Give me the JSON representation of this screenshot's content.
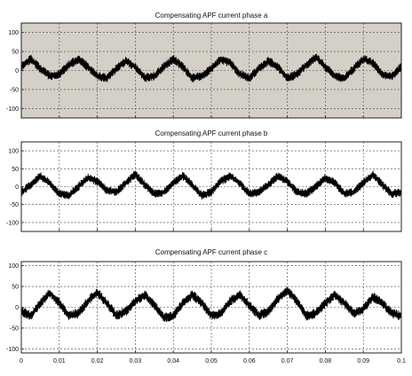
{
  "chart_data": [
    {
      "type": "line",
      "title": "Compensating APF current phase a",
      "xlabel": "",
      "ylabel": "",
      "xlim": [
        0,
        0.1
      ],
      "ylim": [
        -125,
        125
      ],
      "y_ticks": [
        100,
        50,
        0,
        -50,
        -100
      ],
      "y_tick_labels": [
        "100",
        "50",
        "0",
        "-50",
        "-100"
      ],
      "x_ticks": [
        0,
        0.01,
        0.02,
        0.03,
        0.04,
        0.05,
        0.06,
        0.07,
        0.08,
        0.09,
        0.1
      ],
      "x_tick_labels": [],
      "grid": true,
      "background": "#d4d0c8",
      "line_color": "#000000",
      "series": [
        {
          "x": [
            0,
            0.0025,
            0.005,
            0.0075,
            0.01,
            0.0125,
            0.015,
            0.0175,
            0.02,
            0.0225,
            0.025,
            0.0275,
            0.03,
            0.0325,
            0.035,
            0.0375,
            0.04,
            0.0425,
            0.045,
            0.0475,
            0.05,
            0.0525,
            0.055,
            0.0575,
            0.06,
            0.0625,
            0.065,
            0.0675,
            0.07,
            0.0725,
            0.075,
            0.0775,
            0.08,
            0.0825,
            0.085,
            0.0875,
            0.09,
            0.0925,
            0.095,
            0.0975,
            0.1
          ],
          "values": [
            10,
            30,
            5,
            -15,
            -10,
            15,
            30,
            10,
            -15,
            -20,
            5,
            25,
            10,
            -20,
            -15,
            10,
            30,
            10,
            -20,
            -15,
            5,
            30,
            20,
            -10,
            -20,
            5,
            25,
            10,
            -20,
            -10,
            15,
            35,
            10,
            -15,
            -20,
            5,
            30,
            20,
            -10,
            -15,
            10
          ]
        }
      ],
      "noise_amplitude": 12
    },
    {
      "type": "line",
      "title": "Compensating APF current phase b",
      "xlabel": "",
      "ylabel": "",
      "xlim": [
        0,
        0.1
      ],
      "ylim": [
        -125,
        125
      ],
      "y_ticks": [
        100,
        50,
        0,
        -50,
        -100
      ],
      "y_tick_labels": [
        "100",
        "50",
        "0",
        "-50",
        "-100"
      ],
      "x_ticks": [
        0,
        0.01,
        0.02,
        0.03,
        0.04,
        0.05,
        0.06,
        0.07,
        0.08,
        0.09,
        0.1
      ],
      "x_tick_labels": [],
      "grid": true,
      "background": "#ffffff",
      "line_color": "#000000",
      "series": [
        {
          "x": [
            0,
            0.0025,
            0.005,
            0.0075,
            0.01,
            0.0125,
            0.015,
            0.0175,
            0.02,
            0.0225,
            0.025,
            0.0275,
            0.03,
            0.0325,
            0.035,
            0.0375,
            0.04,
            0.0425,
            0.045,
            0.0475,
            0.05,
            0.0525,
            0.055,
            0.0575,
            0.06,
            0.0625,
            0.065,
            0.0675,
            0.07,
            0.0725,
            0.075,
            0.0775,
            0.08,
            0.0825,
            0.085,
            0.0875,
            0.09,
            0.0925,
            0.095,
            0.0975,
            0.1
          ],
          "values": [
            -15,
            5,
            30,
            10,
            -20,
            -25,
            0,
            25,
            15,
            -10,
            -15,
            10,
            35,
            5,
            -20,
            -15,
            10,
            30,
            5,
            -25,
            -15,
            15,
            30,
            10,
            -20,
            -15,
            5,
            30,
            15,
            -15,
            -20,
            0,
            25,
            10,
            -20,
            -15,
            10,
            35,
            5,
            -20,
            -15
          ]
        }
      ],
      "noise_amplitude": 12
    },
    {
      "type": "line",
      "title": "Compensating APF current phase c",
      "xlabel": "",
      "ylabel": "",
      "xlim": [
        0,
        0.1
      ],
      "ylim": [
        -110,
        110
      ],
      "y_ticks": [
        100,
        50,
        0,
        -50,
        -100
      ],
      "y_tick_labels": [
        "100",
        "50",
        "0",
        "-50",
        "-100"
      ],
      "x_ticks": [
        0,
        0.01,
        0.02,
        0.03,
        0.04,
        0.05,
        0.06,
        0.07,
        0.08,
        0.09,
        0.1
      ],
      "x_tick_labels": [
        "0",
        "0.01",
        "0.02",
        "0.03",
        "0.04",
        "0.05",
        "0.06",
        "0.07",
        "0.08",
        "0.09",
        "0.1"
      ],
      "grid": true,
      "background": "#ffffff",
      "line_color": "#000000",
      "series": [
        {
          "x": [
            0,
            0.0025,
            0.005,
            0.0075,
            0.01,
            0.0125,
            0.015,
            0.0175,
            0.02,
            0.0225,
            0.025,
            0.0275,
            0.03,
            0.0325,
            0.035,
            0.0375,
            0.04,
            0.0425,
            0.045,
            0.0475,
            0.05,
            0.0525,
            0.055,
            0.0575,
            0.06,
            0.0625,
            0.065,
            0.0675,
            0.07,
            0.0725,
            0.075,
            0.0775,
            0.08,
            0.0825,
            0.085,
            0.0875,
            0.09,
            0.0925,
            0.095,
            0.0975,
            0.1
          ],
          "values": [
            -10,
            -20,
            10,
            35,
            10,
            -20,
            -15,
            15,
            35,
            10,
            -20,
            -10,
            15,
            30,
            5,
            -25,
            -20,
            10,
            30,
            10,
            -20,
            -15,
            15,
            30,
            5,
            -20,
            -10,
            20,
            40,
            15,
            -20,
            -15,
            10,
            30,
            10,
            -15,
            -5,
            25,
            10,
            -15,
            -20
          ]
        }
      ],
      "noise_amplitude": 12
    }
  ]
}
